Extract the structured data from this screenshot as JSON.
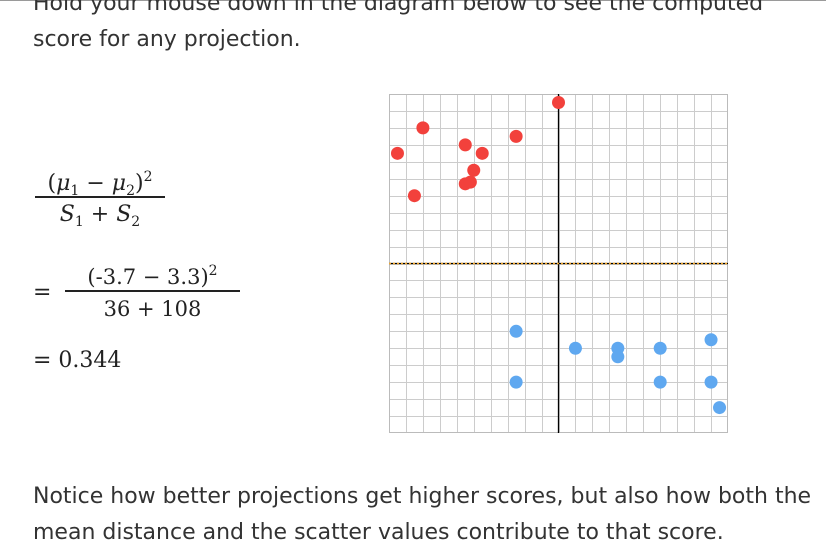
{
  "text": {
    "top_line_partial": "Hold your mouse down in the diagram below to see the computed",
    "top_line_2": "score for any projection.",
    "bottom_paragraph": "Notice how better projections get higher scores, but also how both the mean distance and the scatter values contribute to that score."
  },
  "formula": {
    "mu1": "μ",
    "mu1_sub": "1",
    "minus": "−",
    "mu2": "μ",
    "mu2_sub": "2",
    "power": "2",
    "s1": "S",
    "s1_sub": "1",
    "plus": "+",
    "s2": "S",
    "s2_sub": "2",
    "equals": "=",
    "sub_numerator": "(-3.7 − 3.3)",
    "sub_power": "2",
    "sub_denominator": "36 + 108",
    "result": "= 0.344"
  },
  "diagram": {
    "colors": {
      "red": "#f2413c",
      "blue": "#5fa8f0",
      "grid": "#cccccc",
      "border": "#bbbbbb",
      "axis": "#000000",
      "projection_line": "#f5a623"
    },
    "red_points": [
      [
        -9.5,
        6.5
      ],
      [
        -8.0,
        8.0
      ],
      [
        -8.5,
        4.0
      ],
      [
        -5.5,
        7.0
      ],
      [
        -5.0,
        5.5
      ],
      [
        -4.5,
        6.5
      ],
      [
        -5.5,
        4.7
      ],
      [
        -5.2,
        4.8
      ],
      [
        -2.5,
        7.5
      ],
      [
        0,
        9.5
      ]
    ],
    "blue_points": [
      [
        -2.5,
        -4.0
      ],
      [
        -2.5,
        -7.0
      ],
      [
        1.0,
        -5.0
      ],
      [
        3.5,
        -5.0
      ],
      [
        3.5,
        -5.5
      ],
      [
        6.0,
        -5.0
      ],
      [
        6.0,
        -7.0
      ],
      [
        9.0,
        -7.0
      ],
      [
        9.0,
        -4.5
      ],
      [
        9.5,
        -8.5
      ]
    ]
  }
}
